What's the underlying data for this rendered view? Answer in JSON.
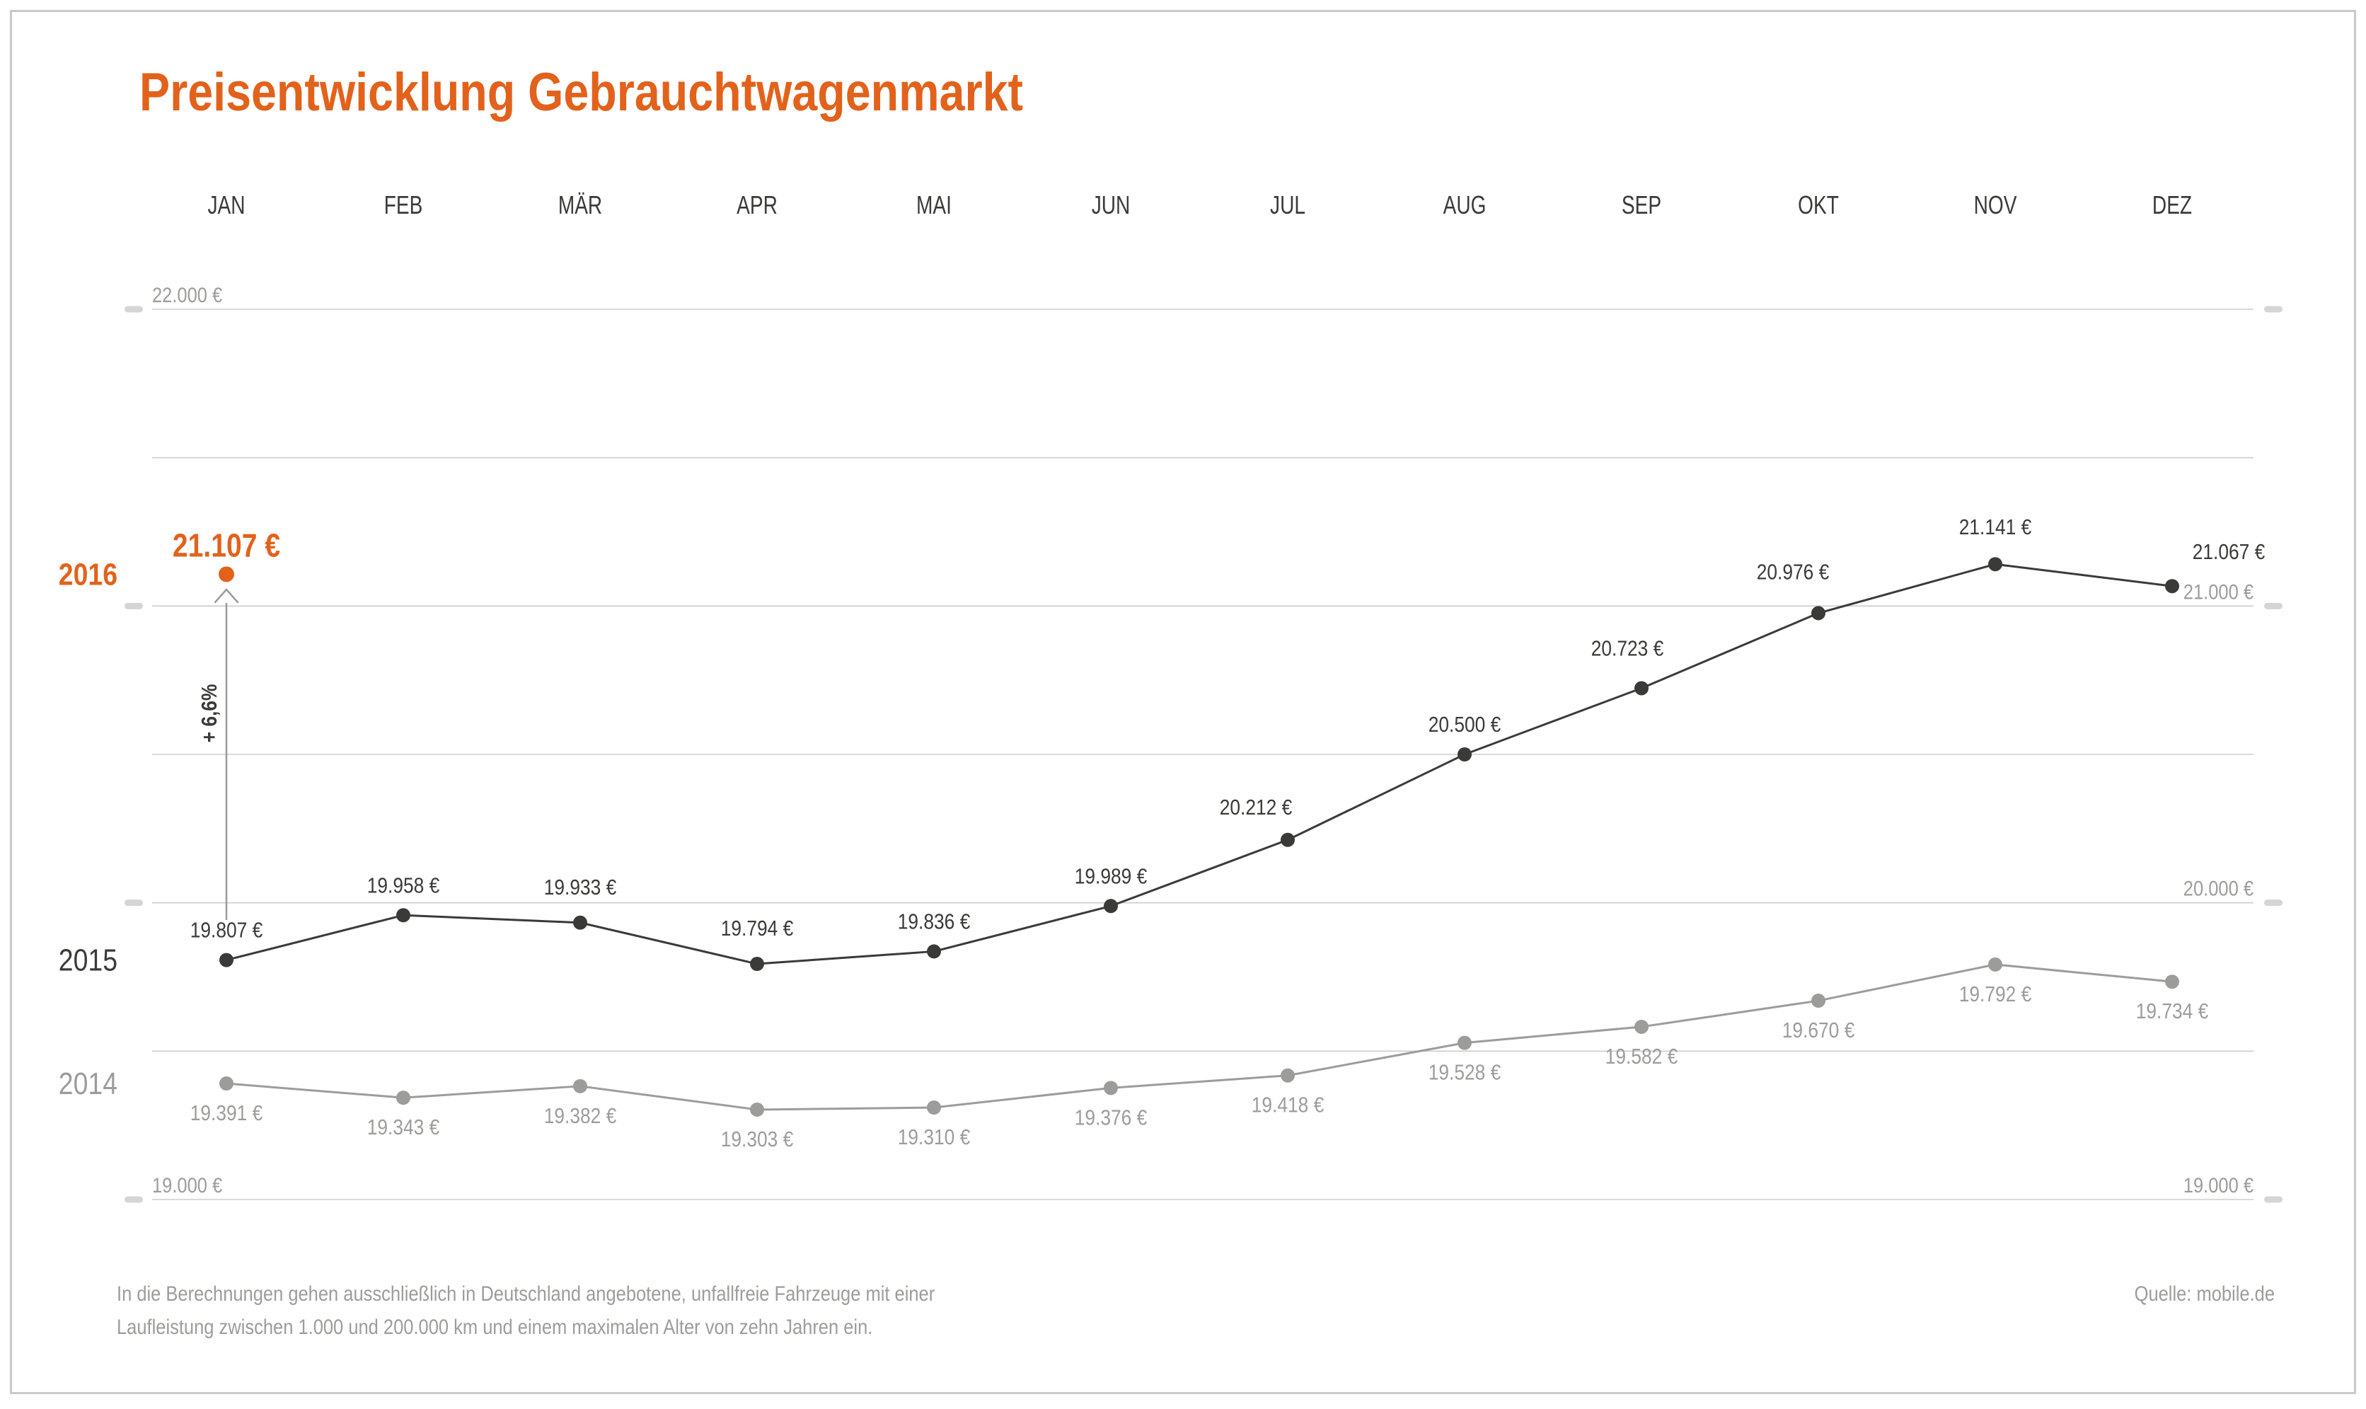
{
  "title": "Preisentwicklung Gebrauchtwagenmarkt",
  "footnote": {
    "line1": "In die Berechnungen gehen ausschließlich in Deutschland angebotene, unfallfreie Fahrzeuge mit einer",
    "line2": "Laufleistung zwischen 1.000 und 200.000 km und einem maximalen Alter von zehn Jahren ein."
  },
  "source": "Quelle: mobile.de",
  "colors": {
    "accent": "#e2621c",
    "dark": "#3a3a39",
    "gray": "#9c9c9b",
    "gridline": "#cdcdcd",
    "tick": "#d5d5d5",
    "border": "#c9c9c9",
    "background": "#ffffff"
  },
  "axis": {
    "left_labels": [
      {
        "value": 22000,
        "label": "22.000 €"
      },
      {
        "value": 19000,
        "label": "19.000 €"
      }
    ],
    "right_labels": [
      {
        "value": 21000,
        "label": "21.000 €"
      },
      {
        "value": 20000,
        "label": "20.000 €"
      },
      {
        "value": 19000,
        "label": "19.000 €"
      }
    ]
  },
  "chart_data": {
    "type": "line",
    "categories": [
      "JAN",
      "FEB",
      "MÄR",
      "APR",
      "MAI",
      "JUN",
      "JUL",
      "AUG",
      "SEP",
      "OKT",
      "NOV",
      "DEZ"
    ],
    "ylim": [
      19000,
      22000
    ],
    "gridline_step": 500,
    "grid": "horizontal-only",
    "legend_position": "left-inline-year-labels",
    "series": [
      {
        "name": "2014",
        "color": "#9c9c9b",
        "values": [
          19391,
          19343,
          19382,
          19303,
          19310,
          19376,
          19418,
          19528,
          19582,
          19670,
          19792,
          19734
        ],
        "labels": [
          "19.391 €",
          "19.343 €",
          "19.382 €",
          "19.303 €",
          "19.310 €",
          "19.376 €",
          "19.418 €",
          "19.528 €",
          "19.582 €",
          "19.670 €",
          "19.792 €",
          "19.734 €"
        ]
      },
      {
        "name": "2015",
        "color": "#3a3a39",
        "values": [
          19807,
          19958,
          19933,
          19794,
          19836,
          19989,
          20212,
          20500,
          20723,
          20976,
          21141,
          21067
        ],
        "labels": [
          "19.807 €",
          "19.958 €",
          "19.933 €",
          "19.794 €",
          "19.836 €",
          "19.989 €",
          "20.212 €",
          "20.500 €",
          "20.723 €",
          "20.976 €",
          "21.141 €",
          "21.067 €"
        ]
      }
    ],
    "highlight": {
      "name": "2016",
      "month": "JAN",
      "value": 21107,
      "label": "21.107 €",
      "change_label": "+ 6,6%",
      "color": "#e2621c"
    }
  }
}
